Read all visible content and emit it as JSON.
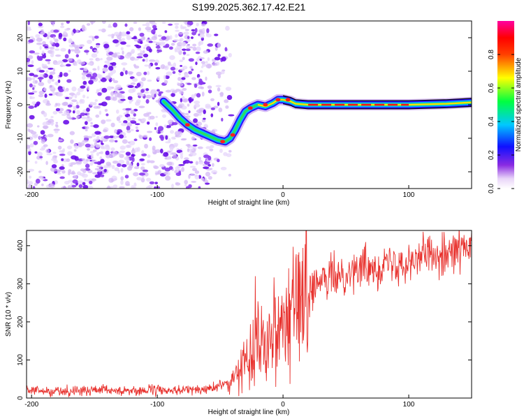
{
  "title": "S199.2025.362.17.42.E21",
  "colors": {
    "snr_line": "#e8322e",
    "axis": "#000000",
    "signal_track": "#000000"
  },
  "chart_data": [
    {
      "type": "heatmap",
      "name": "spectrogram",
      "title": "S199.2025.362.17.42.E21",
      "xlabel": "Height of straight line (km)",
      "ylabel": "Frequency (Hz)",
      "xlim": [
        -204,
        150
      ],
      "ylim": [
        -25,
        25
      ],
      "x_ticks": [
        -200,
        -100,
        0,
        100
      ],
      "y_ticks": [
        -20,
        -10,
        0,
        10,
        20
      ],
      "colorbar": {
        "label": "Normalized spectral amplitude",
        "range": [
          0,
          1
        ],
        "ticks": [
          0.0,
          0.2,
          0.4,
          0.6,
          0.8
        ],
        "tick_labels": [
          "0.0",
          "0.2",
          "0.4",
          "0.6",
          "0.8"
        ],
        "colormap": "rainbow (purple-blue-cyan-green-yellow-red-magenta)"
      },
      "track": [
        {
          "x": -95,
          "y": 1.0
        },
        {
          "x": -88,
          "y": -1.5
        },
        {
          "x": -82,
          "y": -4
        },
        {
          "x": -76,
          "y": -6
        },
        {
          "x": -70,
          "y": -7.5
        },
        {
          "x": -64,
          "y": -8.5
        },
        {
          "x": -58,
          "y": -9.5
        },
        {
          "x": -52,
          "y": -10.5
        },
        {
          "x": -46,
          "y": -11
        },
        {
          "x": -42,
          "y": -10
        },
        {
          "x": -38,
          "y": -7.5
        },
        {
          "x": -34,
          "y": -4.5
        },
        {
          "x": -30,
          "y": -2
        },
        {
          "x": -26,
          "y": -1
        },
        {
          "x": -20,
          "y": 0
        },
        {
          "x": -14,
          "y": -0.5
        },
        {
          "x": -8,
          "y": 0.5
        },
        {
          "x": -4,
          "y": 1.5
        },
        {
          "x": 0,
          "y": 1.5
        },
        {
          "x": 6,
          "y": 1
        },
        {
          "x": 10,
          "y": 0.3
        },
        {
          "x": 20,
          "y": 0
        },
        {
          "x": 60,
          "y": 0
        },
        {
          "x": 100,
          "y": 0
        },
        {
          "x": 130,
          "y": 0.3
        },
        {
          "x": 150,
          "y": 0.7
        }
      ],
      "track_band_x": [
        0,
        150
      ],
      "noise_extent_x": [
        -204,
        -50
      ]
    },
    {
      "type": "line",
      "name": "snr",
      "xlabel": "Height of straight line (km)",
      "ylabel": "SNR (10 * v/v)",
      "xlim": [
        -204,
        150
      ],
      "ylim": [
        0,
        440
      ],
      "x_ticks": [
        -200,
        -100,
        0,
        100
      ],
      "y_ticks": [
        0,
        100,
        200,
        300,
        400
      ],
      "trend": [
        {
          "x": -204,
          "y": 18
        },
        {
          "x": -100,
          "y": 20
        },
        {
          "x": -60,
          "y": 22
        },
        {
          "x": -40,
          "y": 45
        },
        {
          "x": -30,
          "y": 100
        },
        {
          "x": -20,
          "y": 150
        },
        {
          "x": -10,
          "y": 180
        },
        {
          "x": 0,
          "y": 210
        },
        {
          "x": 10,
          "y": 240
        },
        {
          "x": 20,
          "y": 280
        },
        {
          "x": 40,
          "y": 320
        },
        {
          "x": 60,
          "y": 340
        },
        {
          "x": 80,
          "y": 350
        },
        {
          "x": 100,
          "y": 365
        },
        {
          "x": 120,
          "y": 380
        },
        {
          "x": 150,
          "y": 395
        }
      ],
      "spikes": [
        {
          "x": -22,
          "y": 320
        }
      ],
      "samples": 1000
    }
  ]
}
